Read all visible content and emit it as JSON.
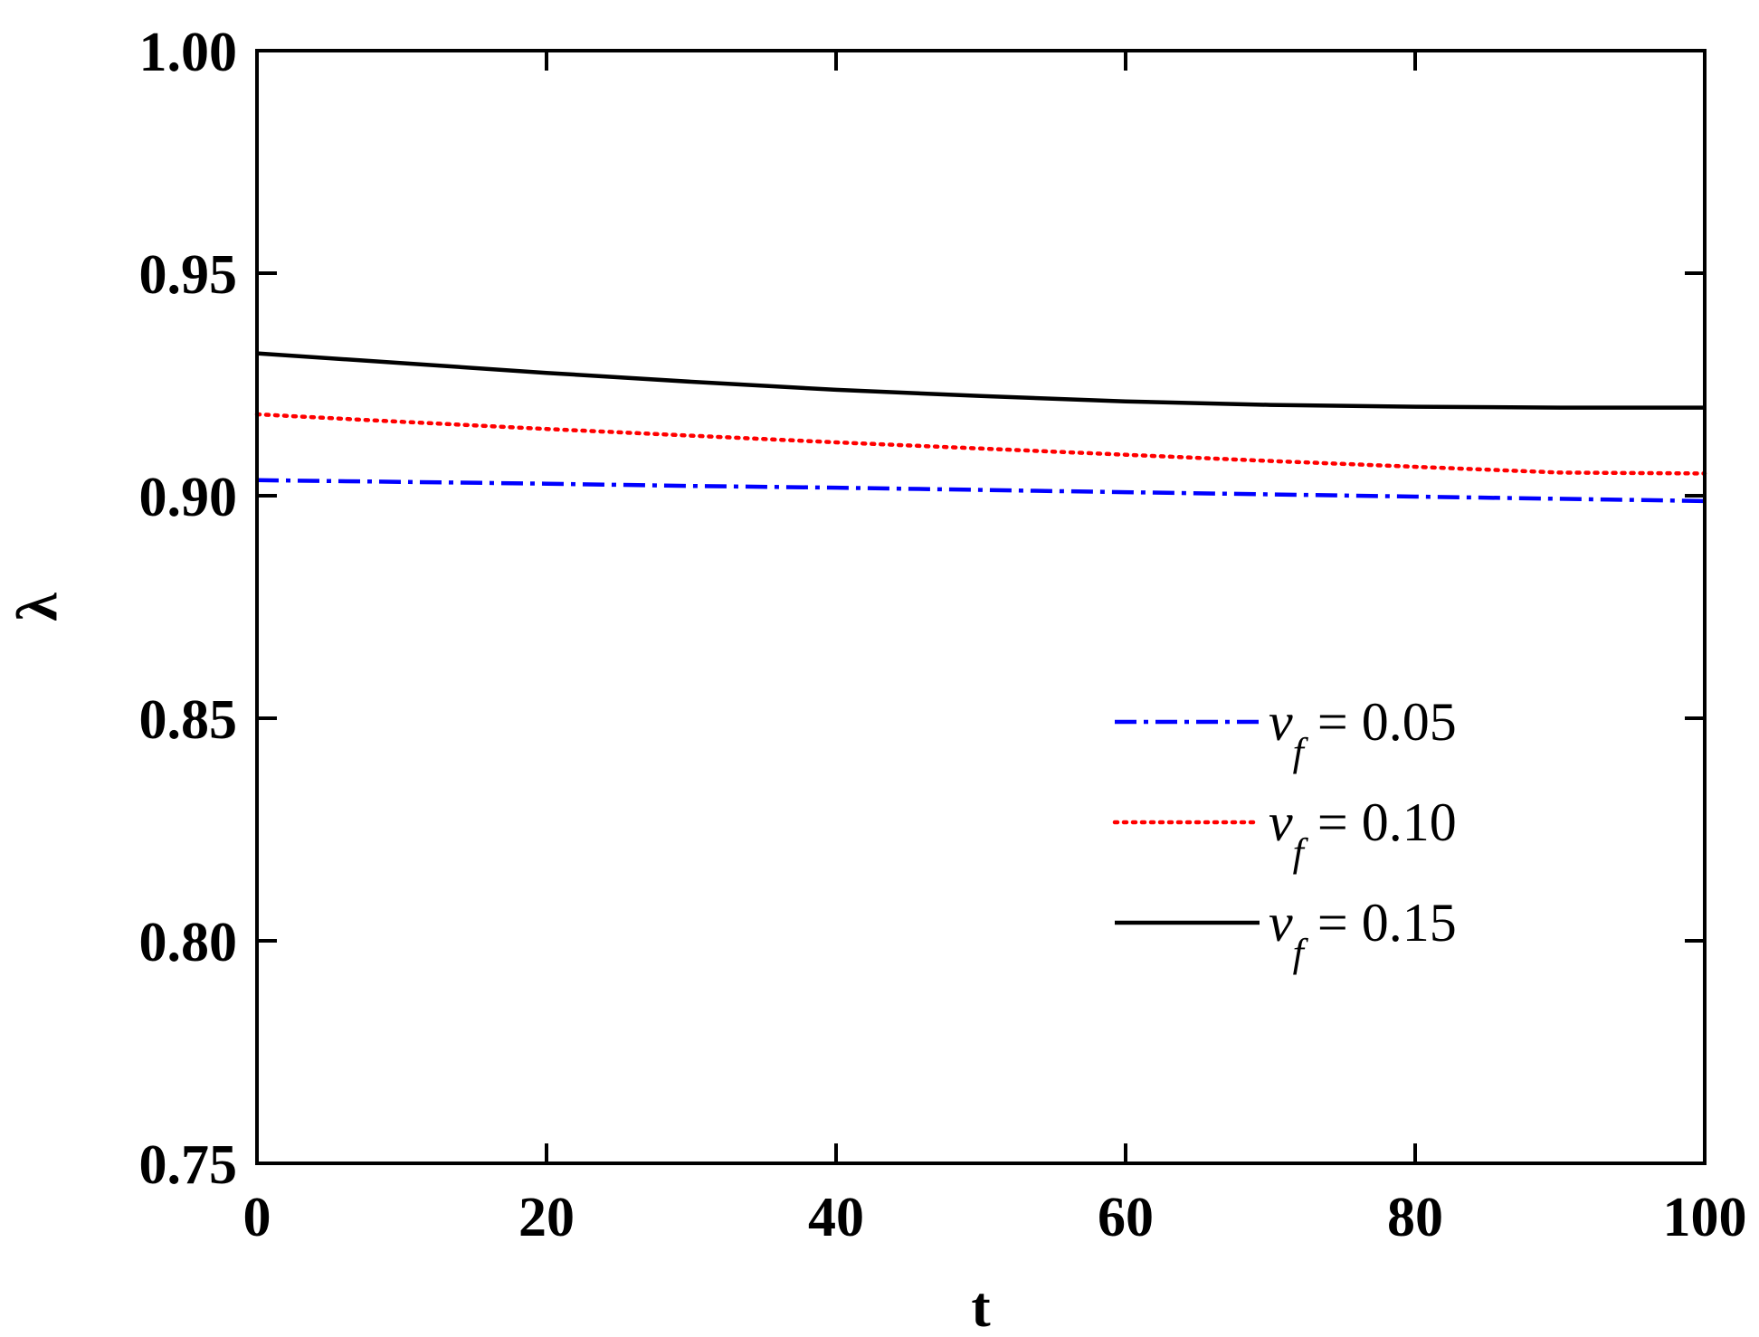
{
  "chart_data": {
    "type": "line",
    "title": "",
    "xlabel": "t",
    "ylabel": "λ",
    "xlim": [
      0,
      100
    ],
    "ylim": [
      0.75,
      1.0
    ],
    "x_ticks": [
      "0",
      "20",
      "40",
      "60",
      "80",
      "100"
    ],
    "y_ticks": [
      "0.75",
      "0.80",
      "0.85",
      "0.90",
      "0.95",
      "1.00"
    ],
    "grid": false,
    "legend_position": "lower-right",
    "x": [
      0,
      10,
      20,
      30,
      40,
      50,
      60,
      70,
      80,
      90,
      100
    ],
    "series": [
      {
        "name": "v_f = 0.05",
        "legend_var": "v",
        "legend_sub": "f",
        "legend_rest": " = 0.05",
        "color": "#0000ff",
        "dash": "dashdot",
        "values": [
          0.9035,
          0.9031,
          0.9027,
          0.9022,
          0.9018,
          0.9013,
          0.9008,
          0.9003,
          0.8998,
          0.8993,
          0.8988
        ]
      },
      {
        "name": "v_f = 0.10",
        "legend_var": "v",
        "legend_sub": "f",
        "legend_rest": " = 0.10",
        "color": "#ff0000",
        "dash": "dotted",
        "values": [
          0.9183,
          0.9166,
          0.915,
          0.9135,
          0.912,
          0.9106,
          0.9092,
          0.9078,
          0.9065,
          0.9052,
          0.905
        ]
      },
      {
        "name": "v_f = 0.15",
        "legend_var": "v",
        "legend_sub": "f",
        "legend_rest": " = 0.15",
        "color": "#000000",
        "dash": "solid",
        "values": [
          0.932,
          0.9298,
          0.9276,
          0.9256,
          0.9238,
          0.9224,
          0.9212,
          0.9204,
          0.92,
          0.9198,
          0.9198
        ]
      }
    ]
  }
}
